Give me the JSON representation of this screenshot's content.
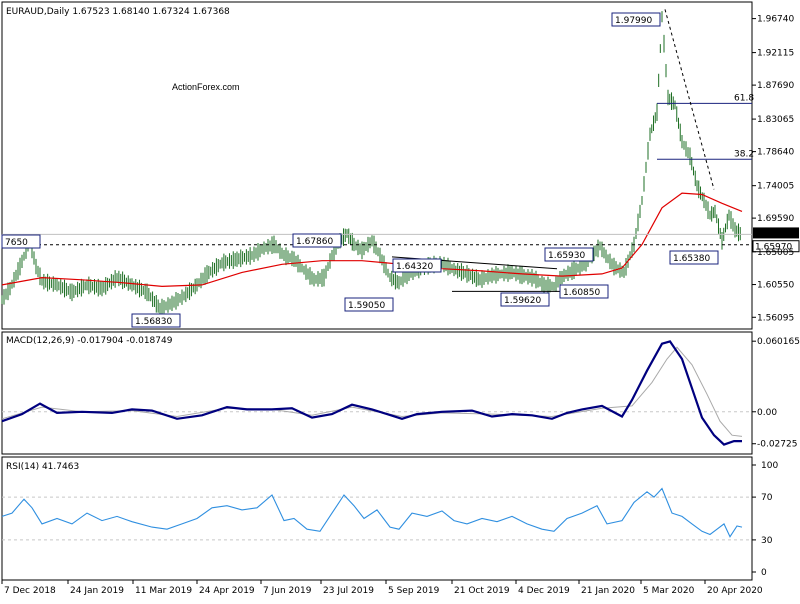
{
  "header": {
    "symbol": "EURAUD,Daily",
    "ohlc": "1.67523 1.68140 1.67324 1.67368"
  },
  "watermark": "ActionForex.com",
  "colors": {
    "price": "#1e6f24",
    "ma": "#e00000",
    "macd": "#00007f",
    "signal": "#a9a9a9",
    "rsi": "#2f8fe0",
    "label_border": "#1a237e",
    "label_text": "#1a237e",
    "grid": "#c8c8c8"
  },
  "chart_data": [
    {
      "type": "line",
      "panel": "price",
      "x": [
        "7 Dec 2018",
        "24 Jan 2019",
        "11 Mar 2019",
        "24 Apr 2019",
        "7 Jun 2019",
        "23 Jul 2019",
        "5 Sep 2019",
        "21 Oct 2019",
        "4 Dec 2019",
        "21 Jan 2020",
        "5 Mar 2020",
        "20 Apr 2020"
      ],
      "ylim": [
        1.545,
        1.99
      ],
      "yticks": [
        "1.96740",
        "1.92115",
        "1.87690",
        "1.83065",
        "1.78640",
        "1.74005",
        "1.69590",
        "1.65005",
        "1.60550",
        "1.56095"
      ],
      "current_price": "1.67368",
      "level_1_65970": "1.65970",
      "series": [
        {
          "name": "Price",
          "points": [
            [
              0,
              1.585
            ],
            [
              8,
              1.6
            ],
            [
              18,
              1.63
            ],
            [
              28,
              1.665
            ],
            [
              34,
              1.63
            ],
            [
              40,
              1.61
            ],
            [
              55,
              1.605
            ],
            [
              70,
              1.595
            ],
            [
              85,
              1.605
            ],
            [
              100,
              1.6
            ],
            [
              115,
              1.615
            ],
            [
              130,
              1.605
            ],
            [
              145,
              1.595
            ],
            [
              158,
              1.573
            ],
            [
              170,
              1.58
            ],
            [
              182,
              1.59
            ],
            [
              195,
              1.605
            ],
            [
              205,
              1.62
            ],
            [
              220,
              1.635
            ],
            [
              235,
              1.64
            ],
            [
              250,
              1.645
            ],
            [
              262,
              1.655
            ],
            [
              272,
              1.66
            ],
            [
              282,
              1.645
            ],
            [
              292,
              1.64
            ],
            [
              302,
              1.625
            ],
            [
              312,
              1.612
            ],
            [
              322,
              1.615
            ],
            [
              330,
              1.645
            ],
            [
              338,
              1.665
            ],
            [
              345,
              1.675
            ],
            [
              352,
              1.66
            ],
            [
              360,
              1.652
            ],
            [
              370,
              1.665
            ],
            [
              378,
              1.645
            ],
            [
              388,
              1.615
            ],
            [
              397,
              1.608
            ],
            [
              405,
              1.618
            ],
            [
              415,
              1.625
            ],
            [
              428,
              1.632
            ],
            [
              440,
              1.634
            ],
            [
              452,
              1.626
            ],
            [
              465,
              1.62
            ],
            [
              478,
              1.612
            ],
            [
              490,
              1.618
            ],
            [
              500,
              1.62
            ],
            [
              510,
              1.622
            ],
            [
              520,
              1.618
            ],
            [
              532,
              1.614
            ],
            [
              542,
              1.605
            ],
            [
              552,
              1.603
            ],
            [
              562,
              1.618
            ],
            [
              572,
              1.625
            ],
            [
              582,
              1.632
            ],
            [
              592,
              1.648
            ],
            [
              598,
              1.658
            ],
            [
              604,
              1.644
            ],
            [
              612,
              1.63
            ],
            [
              622,
              1.622
            ],
            [
              632,
              1.66
            ],
            [
              640,
              1.72
            ],
            [
              648,
              1.81
            ],
            [
              655,
              1.84
            ],
            [
              660,
              1.97
            ],
            [
              666,
              1.86
            ],
            [
              673,
              1.85
            ],
            [
              680,
              1.8
            ],
            [
              688,
              1.78
            ],
            [
              695,
              1.74
            ],
            [
              702,
              1.72
            ],
            [
              708,
              1.7
            ],
            [
              713,
              1.705
            ],
            [
              720,
              1.665
            ],
            [
              727,
              1.7
            ],
            [
              733,
              1.68
            ],
            [
              740,
              1.673
            ]
          ]
        },
        {
          "name": "MA",
          "points": [
            [
              0,
              1.605
            ],
            [
              40,
              1.615
            ],
            [
              80,
              1.612
            ],
            [
              120,
              1.608
            ],
            [
              160,
              1.603
            ],
            [
              200,
              1.605
            ],
            [
              240,
              1.622
            ],
            [
              280,
              1.633
            ],
            [
              320,
              1.638
            ],
            [
              360,
              1.638
            ],
            [
              400,
              1.633
            ],
            [
              440,
              1.627
            ],
            [
              480,
              1.624
            ],
            [
              520,
              1.62
            ],
            [
              560,
              1.617
            ],
            [
              600,
              1.62
            ],
            [
              620,
              1.628
            ],
            [
              640,
              1.66
            ],
            [
              660,
              1.71
            ],
            [
              680,
              1.73
            ],
            [
              700,
              1.728
            ],
            [
              720,
              1.716
            ],
            [
              740,
              1.705
            ]
          ]
        }
      ],
      "annotations": [
        "1.97990",
        "1.65380",
        "1.67860",
        "1.64320",
        "1.65930",
        "1.59050",
        "1.59620",
        "1.60850",
        "1.56830",
        "7650"
      ],
      "fib": [
        {
          "label": "61.8",
          "value": 1.852
        },
        {
          "label": "38.2",
          "value": 1.776
        }
      ]
    },
    {
      "type": "line",
      "panel": "macd",
      "title": "MACD(12,26,9) -0.017904 -0.018749",
      "ylim": [
        -0.036,
        0.068
      ],
      "yticks": [
        "0.060165",
        "0.00",
        "-0.02725"
      ],
      "series": [
        {
          "name": "MACD",
          "points": [
            [
              0,
              -0.008
            ],
            [
              20,
              -0.002
            ],
            [
              38,
              0.007
            ],
            [
              55,
              -0.001
            ],
            [
              80,
              0.0
            ],
            [
              110,
              -0.001
            ],
            [
              130,
              0.002
            ],
            [
              150,
              0.001
            ],
            [
              175,
              -0.006
            ],
            [
              200,
              -0.003
            ],
            [
              225,
              0.004
            ],
            [
              245,
              0.002
            ],
            [
              270,
              0.002
            ],
            [
              290,
              0.003
            ],
            [
              310,
              -0.005
            ],
            [
              330,
              -0.002
            ],
            [
              350,
              0.006
            ],
            [
              370,
              0.002
            ],
            [
              385,
              -0.002
            ],
            [
              400,
              -0.006
            ],
            [
              415,
              -0.002
            ],
            [
              440,
              0.0
            ],
            [
              470,
              0.001
            ],
            [
              490,
              -0.004
            ],
            [
              510,
              -0.002
            ],
            [
              530,
              -0.003
            ],
            [
              550,
              -0.006
            ],
            [
              565,
              -0.001
            ],
            [
              580,
              0.002
            ],
            [
              600,
              0.005
            ],
            [
              620,
              -0.004
            ],
            [
              630,
              0.01
            ],
            [
              645,
              0.035
            ],
            [
              660,
              0.058
            ],
            [
              668,
              0.06
            ],
            [
              680,
              0.045
            ],
            [
              690,
              0.02
            ],
            [
              700,
              -0.005
            ],
            [
              712,
              -0.02
            ],
            [
              722,
              -0.028
            ],
            [
              732,
              -0.025
            ],
            [
              740,
              -0.025
            ]
          ]
        },
        {
          "name": "Signal",
          "points": [
            [
              0,
              -0.006
            ],
            [
              40,
              0.004
            ],
            [
              80,
              0.0
            ],
            [
              130,
              0.001
            ],
            [
              175,
              -0.004
            ],
            [
              225,
              0.003
            ],
            [
              270,
              0.002
            ],
            [
              310,
              -0.003
            ],
            [
              350,
              0.004
            ],
            [
              400,
              -0.004
            ],
            [
              440,
              -0.001
            ],
            [
              490,
              -0.002
            ],
            [
              550,
              -0.004
            ],
            [
              600,
              0.003
            ],
            [
              630,
              0.005
            ],
            [
              650,
              0.025
            ],
            [
              665,
              0.045
            ],
            [
              675,
              0.055
            ],
            [
              690,
              0.04
            ],
            [
              705,
              0.015
            ],
            [
              718,
              -0.008
            ],
            [
              730,
              -0.02
            ],
            [
              740,
              -0.021
            ]
          ]
        }
      ]
    },
    {
      "type": "line",
      "panel": "rsi",
      "title": "RSI(14) 41.7463",
      "ylim": [
        0,
        100
      ],
      "yticks": [
        "100",
        "70",
        "30",
        "0"
      ],
      "series": [
        {
          "name": "RSI",
          "points": [
            [
              0,
              52
            ],
            [
              10,
              55
            ],
            [
              22,
              68
            ],
            [
              30,
              60
            ],
            [
              40,
              45
            ],
            [
              55,
              50
            ],
            [
              70,
              45
            ],
            [
              85,
              55
            ],
            [
              100,
              48
            ],
            [
              115,
              52
            ],
            [
              130,
              47
            ],
            [
              150,
              42
            ],
            [
              165,
              40
            ],
            [
              180,
              45
            ],
            [
              195,
              50
            ],
            [
              210,
              60
            ],
            [
              225,
              62
            ],
            [
              240,
              58
            ],
            [
              255,
              60
            ],
            [
              270,
              72
            ],
            [
              282,
              48
            ],
            [
              292,
              50
            ],
            [
              305,
              40
            ],
            [
              318,
              38
            ],
            [
              330,
              55
            ],
            [
              342,
              72
            ],
            [
              352,
              62
            ],
            [
              362,
              50
            ],
            [
              375,
              58
            ],
            [
              388,
              42
            ],
            [
              397,
              40
            ],
            [
              410,
              55
            ],
            [
              425,
              52
            ],
            [
              440,
              57
            ],
            [
              452,
              48
            ],
            [
              465,
              45
            ],
            [
              480,
              50
            ],
            [
              495,
              47
            ],
            [
              510,
              52
            ],
            [
              525,
              45
            ],
            [
              540,
              40
            ],
            [
              552,
              38
            ],
            [
              565,
              50
            ],
            [
              580,
              55
            ],
            [
              595,
              62
            ],
            [
              605,
              45
            ],
            [
              620,
              48
            ],
            [
              632,
              65
            ],
            [
              645,
              75
            ],
            [
              652,
              70
            ],
            [
              660,
              78
            ],
            [
              670,
              55
            ],
            [
              680,
              52
            ],
            [
              690,
              45
            ],
            [
              700,
              38
            ],
            [
              708,
              35
            ],
            [
              715,
              40
            ],
            [
              722,
              45
            ],
            [
              728,
              33
            ],
            [
              735,
              43
            ],
            [
              740,
              42
            ]
          ]
        }
      ]
    }
  ]
}
